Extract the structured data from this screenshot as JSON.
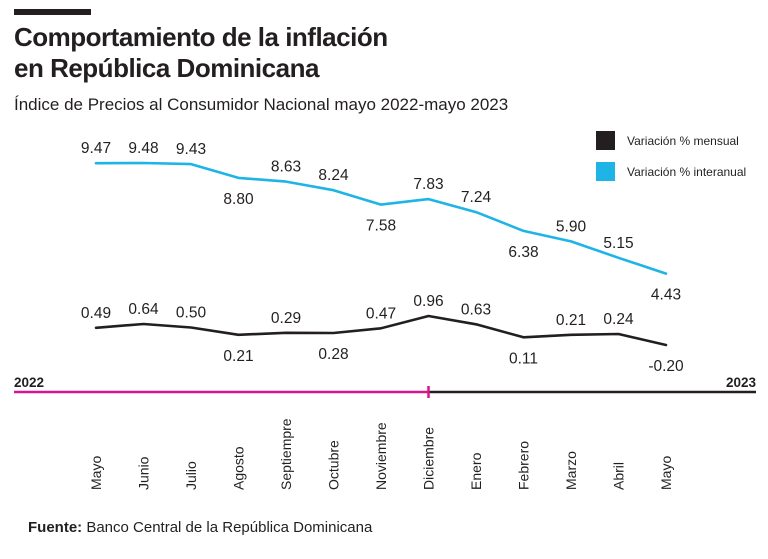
{
  "header": {
    "title_line1": "Comportamiento de la inflación",
    "title_line2": "en República Dominicana",
    "subtitle": "Índice de Precios al Consumidor Nacional mayo 2022-mayo 2023"
  },
  "legend": [
    {
      "label": "Variación % mensual",
      "color": "#231f20"
    },
    {
      "label": "Variación % interanual",
      "color": "#1fb4e6"
    }
  ],
  "timeline": {
    "start_label": "2022",
    "end_label": "2023",
    "color_2022": "#d6168e",
    "color_2023": "#231f20"
  },
  "chart_data": {
    "type": "line",
    "title": "Comportamiento de la inflación en República Dominicana",
    "subtitle": "Índice de Precios al Consumidor Nacional mayo 2022-mayo 2023",
    "categories": [
      "Mayo",
      "Junio",
      "Julio",
      "Agosto",
      "Septiempre",
      "Octubre",
      "Noviembre",
      "Diciembre",
      "Enero",
      "Febrero",
      "Marzo",
      "Abril",
      "Mayo"
    ],
    "series": [
      {
        "name": "Variación % interanual",
        "color": "#1fb4e6",
        "values": [
          9.47,
          9.48,
          9.43,
          8.8,
          8.63,
          8.24,
          7.58,
          7.83,
          7.24,
          6.38,
          5.9,
          5.15,
          4.43
        ],
        "labels": [
          "9.47",
          "9.48",
          "9.43",
          "8.80",
          "8.63",
          "8.24",
          "7.58",
          "7.83",
          "7.24",
          "6.38",
          "5.90",
          "5.15",
          "4.43"
        ]
      },
      {
        "name": "Variación % mensual",
        "color": "#231f20",
        "values": [
          0.49,
          0.64,
          0.5,
          0.21,
          0.29,
          0.28,
          0.47,
          0.96,
          0.63,
          0.11,
          0.21,
          0.24,
          -0.2
        ],
        "labels": [
          "0.49",
          "0.64",
          "0.50",
          "0.21",
          "0.29",
          "0.28",
          "0.47",
          "0.96",
          "0.63",
          "0.11",
          "0.21",
          "0.24",
          "-0.20"
        ]
      }
    ],
    "xlabel": "",
    "ylabel": "",
    "grid": false,
    "legend_position": "top-right"
  },
  "footer": {
    "source_label": "Fuente:",
    "source_text": " Banco Central de la República Dominicana"
  }
}
